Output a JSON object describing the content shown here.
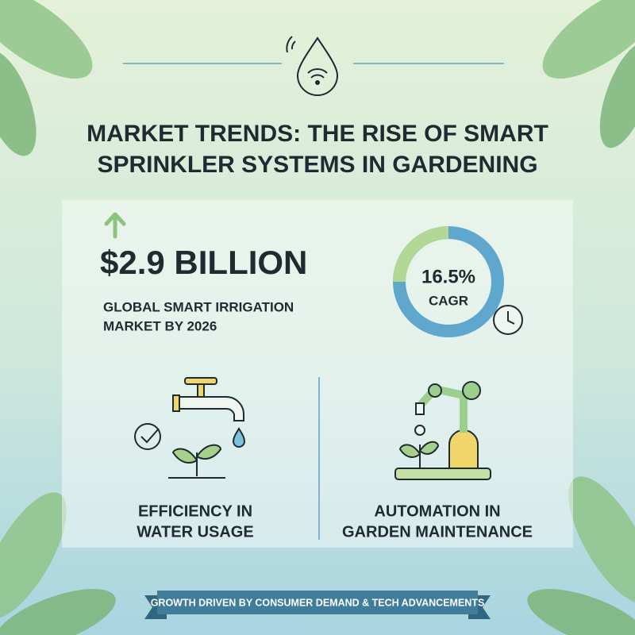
{
  "header": {
    "title_lines": [
      "MARKET TRENDS: THE RISE OF SMART",
      "SPRINKLER SYSTEMS IN GARDENING"
    ]
  },
  "stat": {
    "value": "$2.9 BILLION",
    "description_lines": [
      "GLOBAL SMART IRRIGATION",
      "MARKET BY 2026"
    ]
  },
  "cagr": {
    "value": "16.5%",
    "label": "CAGR"
  },
  "features": [
    {
      "lines": [
        "EFFICIENCY IN",
        "WATER USAGE"
      ]
    },
    {
      "lines": [
        "AUTOMATION IN",
        "GARDEN MAINTENANCE"
      ]
    }
  ],
  "banner": "GROWTH DRIVEN BY CONSUMER DEMAND & TECH ADVANCEMENTS"
}
